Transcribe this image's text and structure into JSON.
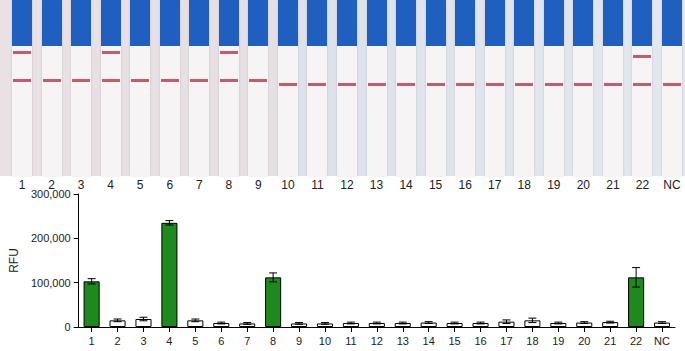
{
  "chart_data": {
    "type": "bar",
    "y_label": "RFU",
    "categories": [
      "1",
      "2",
      "3",
      "4",
      "5",
      "6",
      "7",
      "8",
      "9",
      "10",
      "11",
      "12",
      "13",
      "14",
      "15",
      "16",
      "17",
      "18",
      "19",
      "20",
      "21",
      "22",
      "NC"
    ],
    "values": [
      103000,
      15000,
      18000,
      235000,
      15000,
      9000,
      8000,
      112000,
      8000,
      8000,
      9000,
      9000,
      9000,
      10000,
      9000,
      9000,
      12000,
      15000,
      9000,
      10000,
      11000,
      112000,
      10000
    ],
    "errors": [
      6000,
      3000,
      4000,
      5000,
      3000,
      2000,
      2000,
      10000,
      2000,
      2000,
      2000,
      2000,
      2000,
      2000,
      2000,
      2000,
      4000,
      5000,
      2000,
      2000,
      2000,
      22000,
      2000
    ],
    "colors": [
      "#1e8a1e",
      "#ffffff",
      "#ffffff",
      "#1e8a1e",
      "#ffffff",
      "#ffffff",
      "#ffffff",
      "#1e8a1e",
      "#ffffff",
      "#ffffff",
      "#ffffff",
      "#ffffff",
      "#ffffff",
      "#ffffff",
      "#ffffff",
      "#ffffff",
      "#ffffff",
      "#ffffff",
      "#ffffff",
      "#ffffff",
      "#ffffff",
      "#1e8a1e",
      "#ffffff"
    ],
    "ylim": [
      0,
      300000
    ],
    "yticks": [
      {
        "value": 0,
        "label": "0"
      },
      {
        "value": 100000,
        "label": "100,000"
      },
      {
        "value": 200000,
        "label": "200,000"
      },
      {
        "value": 300000,
        "label": "300,000"
      }
    ],
    "grid": false
  },
  "strips": {
    "labels": [
      "1",
      "2",
      "3",
      "4",
      "5",
      "6",
      "7",
      "8",
      "9",
      "10",
      "11",
      "12",
      "13",
      "14",
      "15",
      "16",
      "17",
      "18",
      "19",
      "20",
      "21",
      "22",
      "NC"
    ],
    "test_line": [
      true,
      false,
      false,
      true,
      false,
      false,
      false,
      true,
      false,
      false,
      false,
      false,
      false,
      false,
      false,
      false,
      false,
      false,
      false,
      false,
      false,
      true,
      false
    ]
  }
}
